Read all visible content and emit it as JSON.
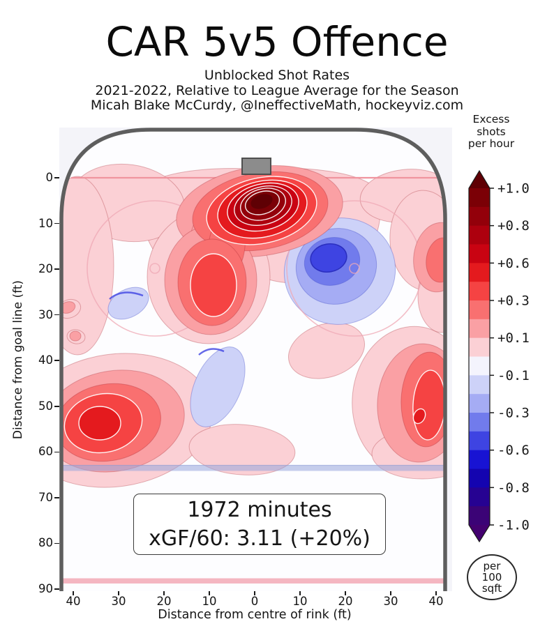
{
  "header": {
    "title": "CAR 5v5 Offence",
    "subtitle_shot_type": "Unblocked Shot Rates",
    "subtitle_season": "2021-2022, Relative to League Average for the Season",
    "subtitle_credit": "Micah Blake McCurdy, @IneffectiveMath, hockeyviz.com"
  },
  "axes": {
    "ylabel": "Distance from goal line (ft)",
    "xlabel": "Distance from centre of rink (ft)",
    "yticks": [
      "0",
      "10",
      "20",
      "30",
      "40",
      "50",
      "60",
      "70",
      "80",
      "90"
    ],
    "xticks": [
      "40",
      "30",
      "20",
      "10",
      "0",
      "10",
      "20",
      "30",
      "40"
    ]
  },
  "stat_box": {
    "minutes_line": "1972 minutes",
    "xgf_line": "xGF/60: 3.11 (+20%)"
  },
  "colorbar": {
    "title": "Excess\nshots\nper hour",
    "tick_labels": [
      "+1.0",
      "+0.8",
      "+0.6",
      "+0.3",
      "+0.1",
      "-0.1",
      "-0.3",
      "-0.6",
      "-0.8",
      "-1.0"
    ],
    "colors": [
      "#7b0006",
      "#93000a",
      "#ad000e",
      "#c90312",
      "#e41a1e",
      "#f54343",
      "#f97070",
      "#faa0a4",
      "#fbd0d5",
      "#f4f4fd",
      "#cdd2f8",
      "#a5acf4",
      "#717bec",
      "#3e44e2",
      "#1813d3",
      "#1404b0",
      "#260292",
      "#3b0376"
    ],
    "cap_top_color": "#5f0004",
    "cap_bottom_color": "#430170",
    "footer": "per\n100\nsqft"
  },
  "chart_data": {
    "type": "heatmap",
    "title": "CAR 5v5 Offence",
    "subtitle": "Unblocked Shot Rates, 2021-2022, Relative to League Average for the Season",
    "source": "Micah Blake McCurdy, @IneffectiveMath, hockeyviz.com",
    "xlabel": "Distance from centre of rink (ft)",
    "ylabel": "Distance from goal line (ft)",
    "x_ticks_ft": [
      40,
      30,
      20,
      10,
      0,
      10,
      20,
      30,
      40
    ],
    "y_ticks_ft": [
      0,
      10,
      20,
      30,
      40,
      50,
      60,
      70,
      80,
      90
    ],
    "x_range_ft": [
      -42.5,
      42.5
    ],
    "y_range_ft": [
      -11,
      91
    ],
    "value_label": "Excess shots per hour per 100 sqft",
    "value_scale_ticks": [
      1.0,
      0.8,
      0.6,
      0.3,
      0.1,
      -0.1,
      -0.3,
      -0.6,
      -0.8,
      -1.0
    ],
    "rink_marks": {
      "goal_line_ft": 0,
      "blue_line_ft": 64,
      "far_goal_line_ft": 89,
      "net_centre_x_ft": 0,
      "faceoff_dots_ft": [
        [
          -22,
          20
        ],
        [
          22,
          20
        ]
      ],
      "faceoff_circle_radius_ft": 15
    },
    "hot_spots": [
      {
        "x_ft": -1,
        "y_ft": 7,
        "peak_excess": 1.0,
        "note": "slot / net-front maximum"
      },
      {
        "x_ft": -9,
        "y_ft": 29,
        "peak_excess": 0.6,
        "note": "centre-left mid slot"
      },
      {
        "x_ft": -34,
        "y_ft": 54,
        "peak_excess": 0.6,
        "note": "left point / boards"
      },
      {
        "x_ft": 37,
        "y_ft": 53,
        "peak_excess": 0.6,
        "note": "right half-boards"
      }
    ],
    "cold_spots": [
      {
        "x_ft": 17,
        "y_ft": 19,
        "peak_excess": -0.6,
        "note": "right faceoff circle"
      },
      {
        "x_ft": -14,
        "y_ft": 42,
        "peak_excess": -0.15,
        "note": "centre high"
      },
      {
        "x_ft": -26,
        "y_ft": 28,
        "peak_excess": -0.15,
        "note": "left of slot"
      }
    ],
    "stats": {
      "minutes": 1972,
      "xGF_per_60": 3.11,
      "xGF_vs_league_avg": "+20%"
    }
  }
}
